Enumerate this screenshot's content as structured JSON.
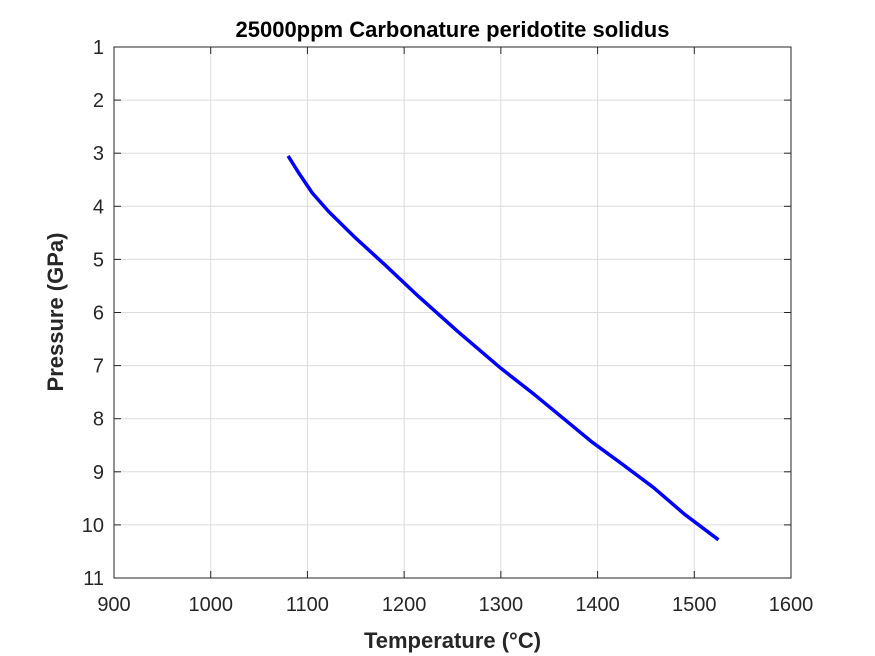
{
  "chart_data": {
    "type": "line",
    "title": "25000ppm Carbonature peridotite solidus",
    "xlabel": "Temperature (°C)",
    "ylabel": "Pressure (GPa)",
    "xlim": [
      900,
      1600
    ],
    "ylim": [
      1,
      11
    ],
    "y_reversed": true,
    "grid": true,
    "x_ticks": [
      "900",
      "1000",
      "1100",
      "1200",
      "1300",
      "1400",
      "1500",
      "1600"
    ],
    "y_ticks": [
      "1",
      "2",
      "3",
      "4",
      "5",
      "6",
      "7",
      "8",
      "9",
      "10",
      "11"
    ],
    "series": [
      {
        "color": "#0000ff",
        "x": [
          1080,
          1092,
          1105,
          1122,
          1150,
          1180,
          1215,
          1255,
          1300,
          1335,
          1365,
          1395,
          1425,
          1458,
          1490,
          1525
        ],
        "y": [
          3.05,
          3.4,
          3.75,
          4.1,
          4.6,
          5.1,
          5.7,
          6.35,
          7.05,
          7.55,
          8.0,
          8.45,
          8.85,
          9.3,
          9.8,
          10.28
        ]
      }
    ]
  }
}
